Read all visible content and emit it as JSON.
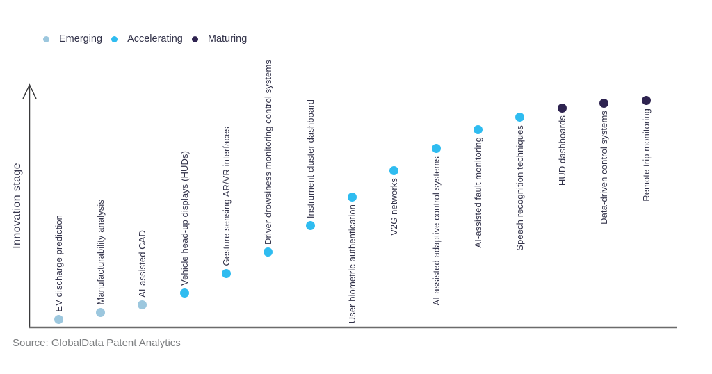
{
  "legend": {
    "items": [
      {
        "label": "Emerging",
        "color": "#9cc7de"
      },
      {
        "label": "Accelerating",
        "color": "#2fbcf0"
      },
      {
        "label": "Maturing",
        "color": "#2e2350"
      }
    ]
  },
  "y_axis": {
    "label": "Innovation stage"
  },
  "source": "Source: GlobalData Patent Analytics",
  "colors": {
    "emerging": "#9cc7de",
    "accelerating": "#2fbcf0",
    "maturing": "#2e2350",
    "text": "#33334a",
    "axis_x": "#6b6b6b",
    "axis_y": "#3a3a3c",
    "source_text": "#7c7e80"
  },
  "chart_data": {
    "type": "scatter",
    "title": "",
    "xlabel": "",
    "ylabel": "Innovation stage",
    "grid": false,
    "legend_position": "top-left",
    "y_axis_has_arrow": true,
    "y_scale_note": "unlabeled qualitative axis; values are relative heights 0-100",
    "stages": [
      "Emerging",
      "Accelerating",
      "Maturing"
    ],
    "points": [
      {
        "label": "EV discharge prediction",
        "stage": "Emerging",
        "value": 3,
        "label_side": "above"
      },
      {
        "label": "Manufacturability analysis",
        "stage": "Emerging",
        "value": 6,
        "label_side": "above"
      },
      {
        "label": "AI-assisted CAD",
        "stage": "Emerging",
        "value": 9,
        "label_side": "above"
      },
      {
        "label": "Vehicle head-up displays (HUDs)",
        "stage": "Accelerating",
        "value": 14,
        "label_side": "above"
      },
      {
        "label": "Gesture sensing AR/VR interfaces",
        "stage": "Accelerating",
        "value": 22,
        "label_side": "above"
      },
      {
        "label": "Driver drowsiness monitoring control systems",
        "stage": "Accelerating",
        "value": 31,
        "label_side": "above"
      },
      {
        "label": "Instrument cluster dashboard",
        "stage": "Accelerating",
        "value": 42,
        "label_side": "above"
      },
      {
        "label": "User biometric authentication",
        "stage": "Accelerating",
        "value": 54,
        "label_side": "below"
      },
      {
        "label": "V2G networks",
        "stage": "Accelerating",
        "value": 65,
        "label_side": "below"
      },
      {
        "label": "AI-assisted adaptive control systems",
        "stage": "Accelerating",
        "value": 74,
        "label_side": "below"
      },
      {
        "label": "AI-assisted fault monitoring",
        "stage": "Accelerating",
        "value": 82,
        "label_side": "below"
      },
      {
        "label": "Speech recognition techniques",
        "stage": "Accelerating",
        "value": 87,
        "label_side": "below"
      },
      {
        "label": "HUD dashboards",
        "stage": "Maturing",
        "value": 91,
        "label_side": "below"
      },
      {
        "label": "Data-driven control systems",
        "stage": "Maturing",
        "value": 93,
        "label_side": "below"
      },
      {
        "label": "Remote trip monitoring",
        "stage": "Maturing",
        "value": 94,
        "label_side": "below"
      }
    ]
  }
}
